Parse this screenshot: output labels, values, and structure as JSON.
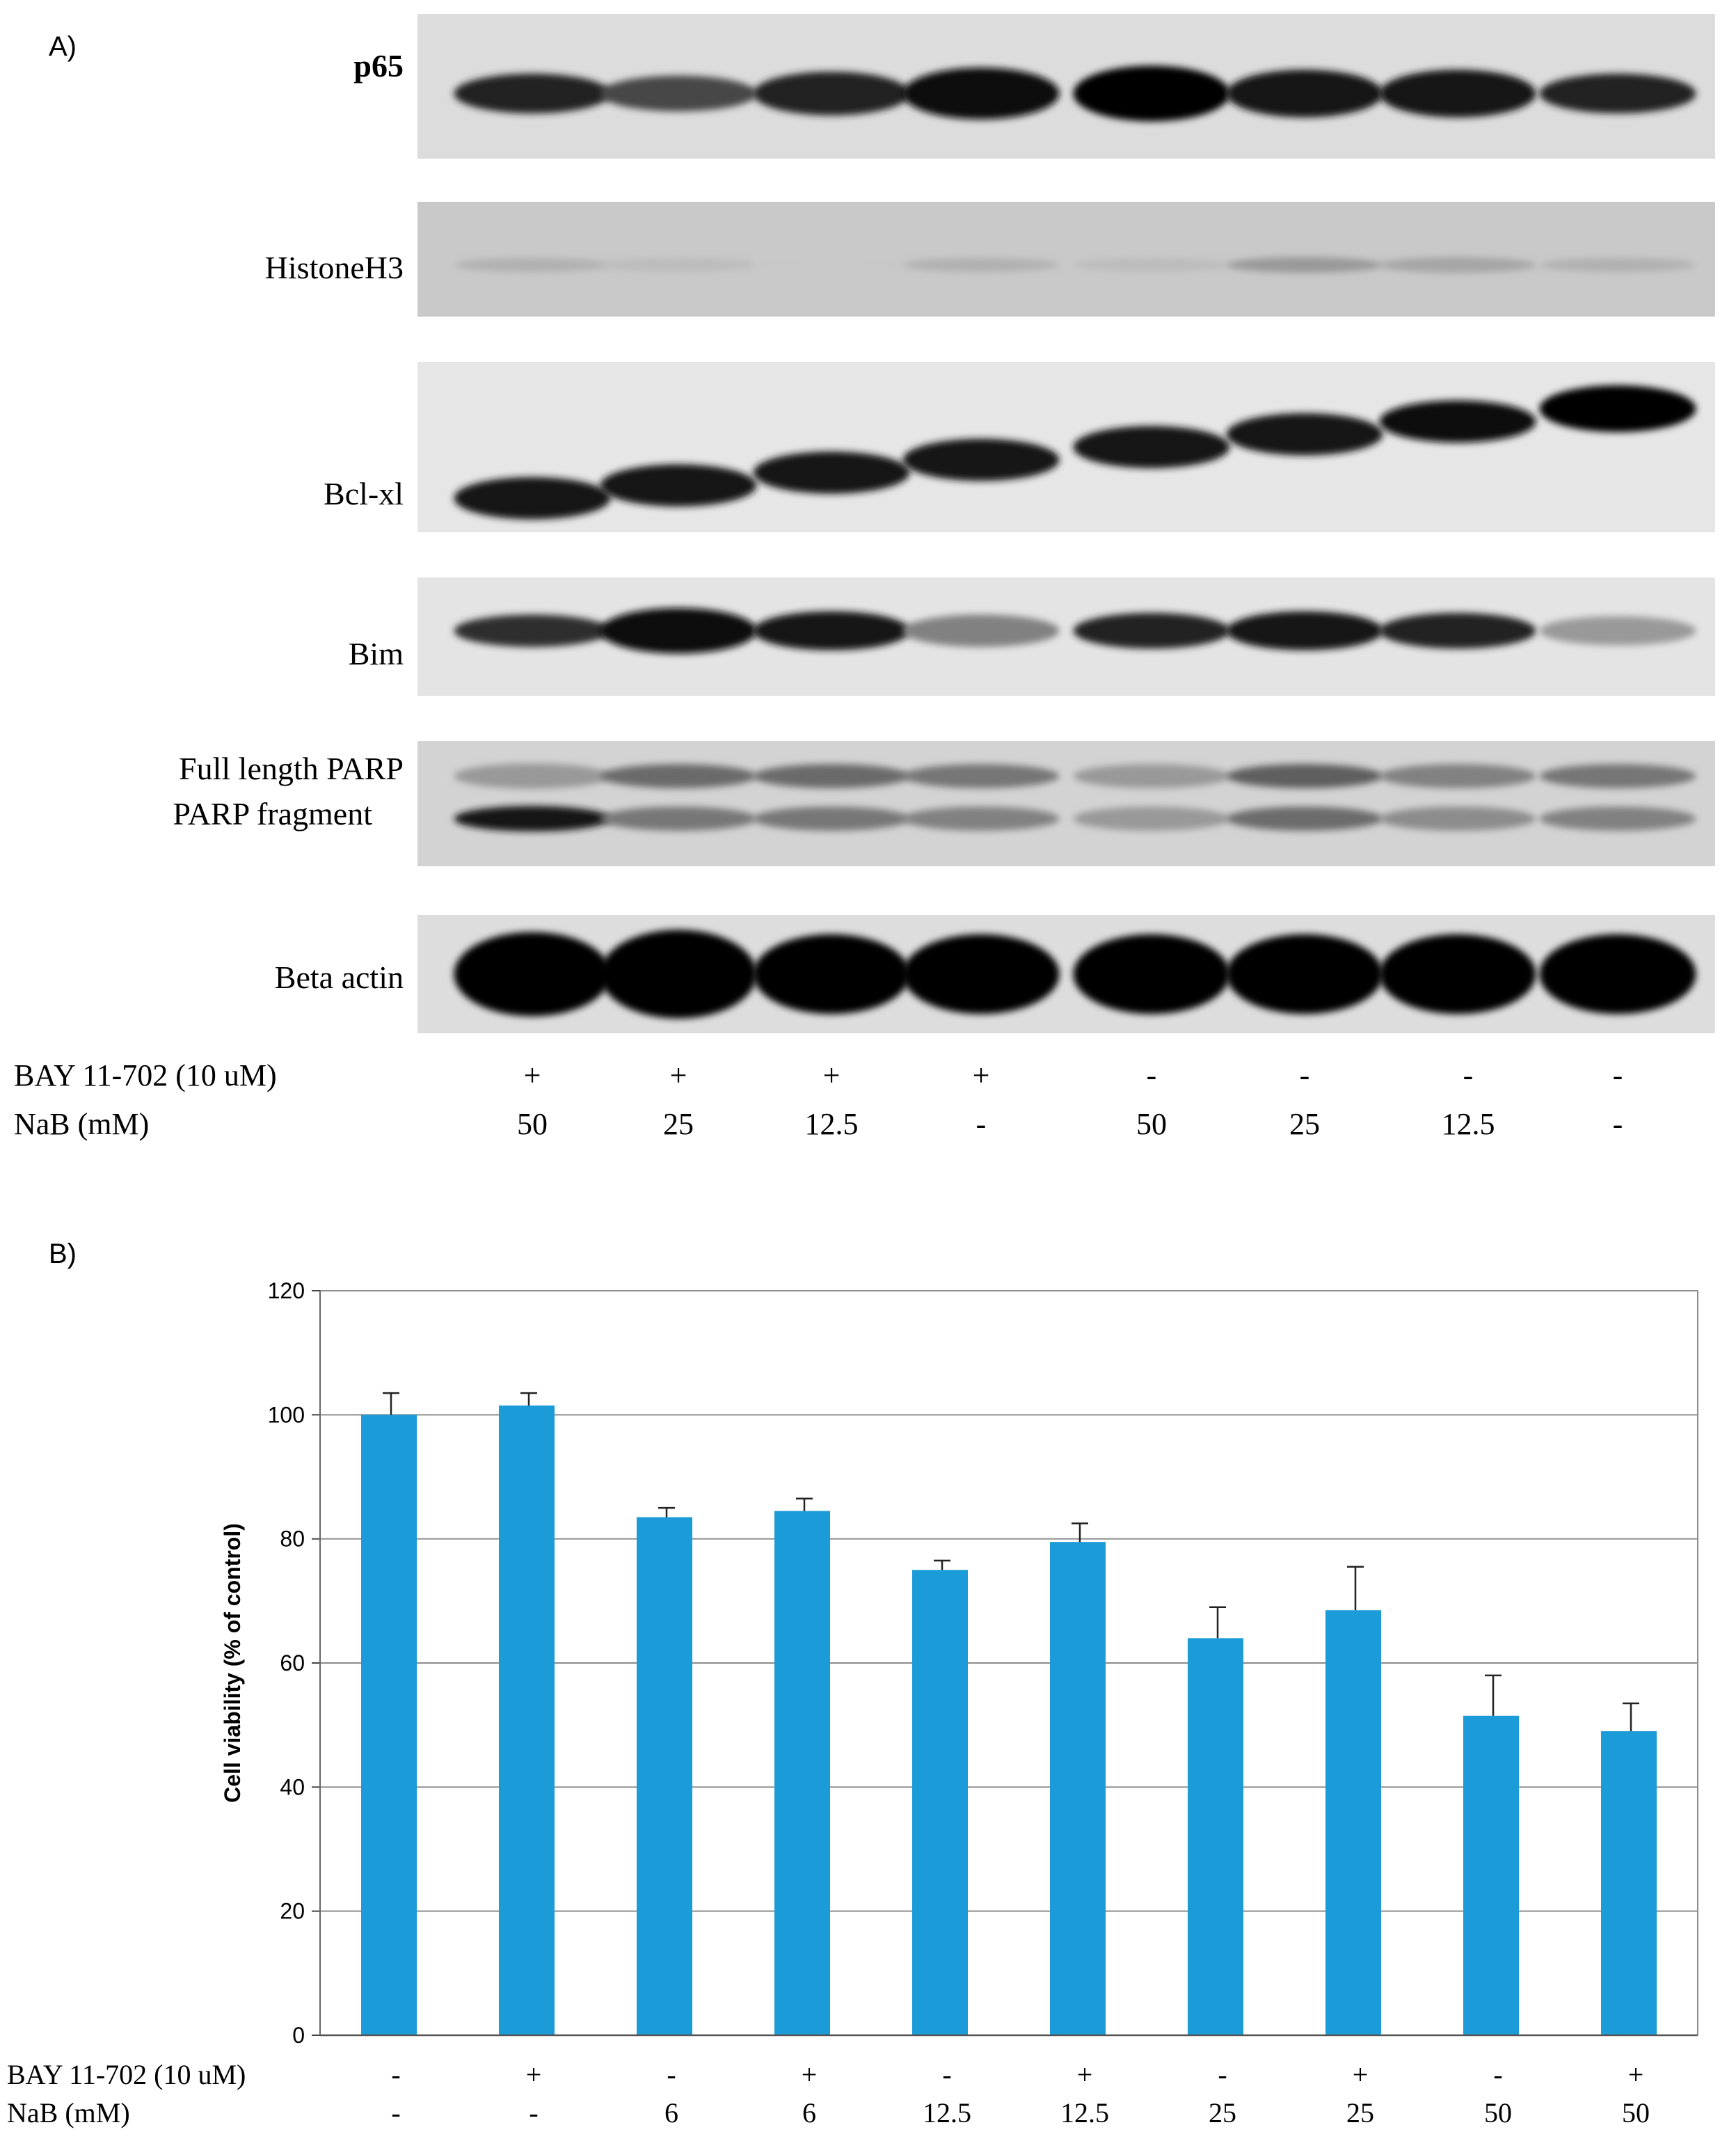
{
  "panel_a": {
    "label": "A)",
    "blots": [
      {
        "name": "p65",
        "bold": true,
        "bg": "#dcdcdc",
        "bands": [
          [
            0.85,
            0.5
          ],
          [
            0.7,
            0.45
          ],
          [
            0.85,
            0.55
          ],
          [
            0.95,
            0.65
          ],
          [
            1.0,
            0.7
          ],
          [
            0.9,
            0.6
          ],
          [
            0.9,
            0.6
          ],
          [
            0.85,
            0.5
          ]
        ]
      },
      {
        "name": "HistoneH3",
        "bold": false,
        "bg": "#c9c9c9",
        "bands": [
          [
            0.25,
            0.2
          ],
          [
            0.2,
            0.2
          ],
          [
            0.15,
            0.2
          ],
          [
            0.25,
            0.2
          ],
          [
            0.2,
            0.2
          ],
          [
            0.35,
            0.25
          ],
          [
            0.3,
            0.25
          ],
          [
            0.25,
            0.2
          ]
        ]
      },
      {
        "name": "Bcl-xl",
        "bold": false,
        "bg": "#e6e6e6",
        "bands": [
          [
            0.9,
            0.45
          ],
          [
            0.9,
            0.45
          ],
          [
            0.9,
            0.45
          ],
          [
            0.9,
            0.45
          ],
          [
            0.9,
            0.45
          ],
          [
            0.9,
            0.45
          ],
          [
            0.95,
            0.45
          ],
          [
            1.0,
            0.5
          ]
        ]
      },
      {
        "name": "Bim",
        "bold": false,
        "bg": "#e4e4e4",
        "bands": [
          [
            0.8,
            0.5
          ],
          [
            0.95,
            0.7
          ],
          [
            0.9,
            0.6
          ],
          [
            0.45,
            0.5
          ],
          [
            0.85,
            0.55
          ],
          [
            0.9,
            0.6
          ],
          [
            0.85,
            0.55
          ],
          [
            0.35,
            0.45
          ]
        ]
      },
      {
        "name": "Full length PARP",
        "name2": "PARP fragment",
        "bold": false,
        "bg": "#d3d3d3",
        "bands": [
          [
            0.85,
            0.35
          ],
          [
            0.55,
            0.3
          ],
          [
            0.55,
            0.3
          ],
          [
            0.5,
            0.3
          ],
          [
            0.35,
            0.3
          ],
          [
            0.6,
            0.3
          ],
          [
            0.45,
            0.3
          ],
          [
            0.5,
            0.3
          ]
        ]
      },
      {
        "name": "Beta actin",
        "bold": false,
        "bg": "#dddddd",
        "bands": [
          [
            1.0,
            0.95
          ],
          [
            1.0,
            1.0
          ],
          [
            1.0,
            0.9
          ],
          [
            1.0,
            0.9
          ],
          [
            1.0,
            0.9
          ],
          [
            1.0,
            0.9
          ],
          [
            1.0,
            0.9
          ],
          [
            1.0,
            0.9
          ]
        ]
      }
    ],
    "conditions": [
      {
        "label": "BAY 11-702 (10 uM)",
        "values": [
          "+",
          "+",
          "+",
          "+",
          "-",
          "-",
          "-",
          "-"
        ]
      },
      {
        "label": "NaB (mM)",
        "values": [
          "50",
          "25",
          "12.5",
          "-",
          "50",
          "25",
          "12.5",
          "-"
        ]
      }
    ]
  },
  "panel_b": {
    "label": "B)",
    "colors": {
      "bar": "#1b9bd7",
      "grid": "#8c8c8c"
    },
    "conditions": [
      {
        "label": "BAY 11-702 (10 uM)",
        "values": [
          "-",
          "+",
          "-",
          "+",
          "-",
          "+",
          "-",
          "+",
          "-",
          "+"
        ]
      },
      {
        "label": "NaB (mM)",
        "values": [
          "-",
          "-",
          "6",
          "6",
          "12.5",
          "12.5",
          "25",
          "25",
          "50",
          "50"
        ]
      }
    ]
  },
  "chart_data": {
    "type": "bar",
    "title": "",
    "xlabel": "",
    "ylabel": "Cell viability  (% of control)",
    "ylim": [
      0,
      120
    ],
    "yticks": [
      0,
      20,
      40,
      60,
      80,
      100,
      120
    ],
    "grid": true,
    "legend": "none",
    "categories": [
      "BAY - / NaB -",
      "BAY + / NaB -",
      "BAY - / NaB 6",
      "BAY + / NaB 6",
      "BAY - / NaB 12.5",
      "BAY + / NaB 12.5",
      "BAY - / NaB 25",
      "BAY + / NaB 25",
      "BAY - / NaB 50",
      "BAY + / NaB 50"
    ],
    "values": [
      100,
      101.5,
      83.5,
      84.5,
      75,
      79.5,
      64,
      68.5,
      51.5,
      49
    ],
    "errors": [
      3.5,
      2,
      1.5,
      2,
      1.5,
      3,
      5,
      7,
      6.5,
      4.5
    ]
  }
}
